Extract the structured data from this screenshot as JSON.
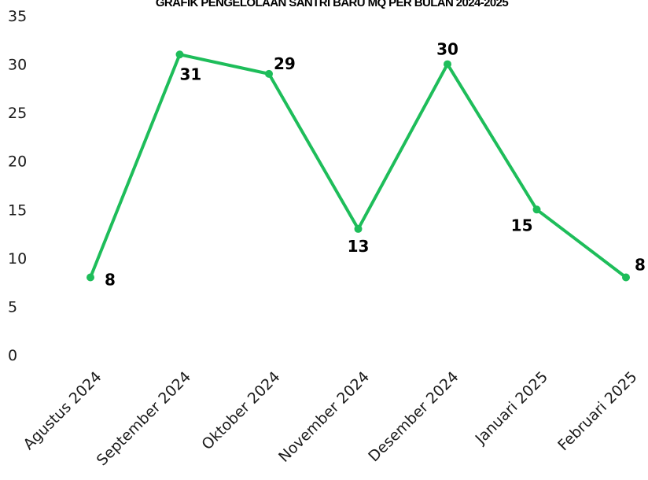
{
  "chart_data": {
    "type": "line",
    "title": "GRAFIK PENGELOLAAN SANTRI BARU MQ PER BULAN 2024-2025",
    "categories": [
      "Agustus 2024",
      "September 2024",
      "Oktober 2024",
      "November 2024",
      "Desember 2024",
      "Januari 2025",
      "Februari 2025"
    ],
    "series": [
      {
        "values": [
          8,
          31,
          29,
          13,
          30,
          15,
          8
        ],
        "color": "#1ebd5a"
      }
    ],
    "data_labels": [
      "8",
      "31",
      "29",
      "13",
      "30",
      "15",
      "8"
    ],
    "yticks": [
      "0",
      "5",
      "10",
      "15",
      "20",
      "25",
      "30",
      "35"
    ],
    "ylim": [
      0,
      35
    ],
    "xlabel": "",
    "ylabel": "",
    "grid": false,
    "legend": "none"
  }
}
